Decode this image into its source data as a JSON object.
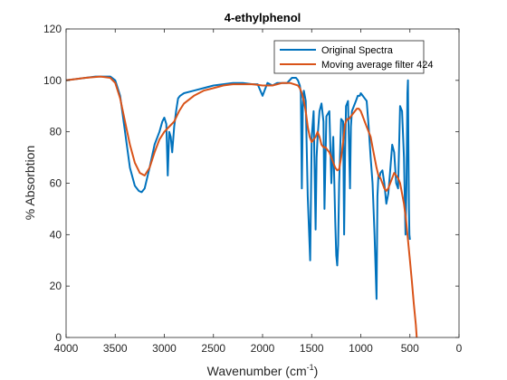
{
  "chart_data": {
    "type": "line",
    "title": "4-ethylphenol",
    "xlabel": "Wavenumber (cm",
    "xlabel_sup": "-1",
    "xlabel_end": ")",
    "ylabel": "% Absorbtion",
    "xlim": [
      4000,
      0
    ],
    "ylim": [
      0,
      120
    ],
    "x_reversed": true,
    "xticks": [
      4000,
      3500,
      3000,
      2500,
      2000,
      1500,
      1000,
      500,
      0
    ],
    "yticks": [
      0,
      20,
      40,
      60,
      80,
      100,
      120
    ],
    "legend_position": "top-right",
    "grid": false,
    "series": [
      {
        "name": "Original Spectra",
        "color": "#0072bd",
        "x": [
          4000,
          3800,
          3700,
          3600,
          3550,
          3500,
          3450,
          3400,
          3350,
          3300,
          3260,
          3230,
          3200,
          3150,
          3100,
          3050,
          3020,
          3000,
          2980,
          2965,
          2950,
          2935,
          2920,
          2900,
          2880,
          2860,
          2840,
          2800,
          2700,
          2600,
          2500,
          2400,
          2300,
          2200,
          2100,
          2050,
          2000,
          1950,
          1900,
          1850,
          1800,
          1750,
          1700,
          1660,
          1640,
          1620,
          1610,
          1600,
          1590,
          1580,
          1560,
          1540,
          1515,
          1500,
          1480,
          1460,
          1450,
          1440,
          1420,
          1400,
          1380,
          1370,
          1350,
          1320,
          1300,
          1280,
          1260,
          1250,
          1240,
          1230,
          1220,
          1200,
          1180,
          1170,
          1160,
          1150,
          1130,
          1110,
          1100,
          1090,
          1070,
          1050,
          1030,
          1010,
          1000,
          980,
          960,
          940,
          920,
          900,
          880,
          860,
          840,
          830,
          820,
          810,
          800,
          780,
          760,
          740,
          720,
          700,
          680,
          660,
          640,
          620,
          600,
          580,
          560,
          545,
          535,
          525,
          520,
          515,
          510,
          505,
          500
        ],
        "y": [
          100,
          101,
          101.5,
          101.5,
          101.5,
          100,
          94,
          80,
          66,
          59,
          57,
          56.5,
          58,
          66,
          75,
          80,
          84,
          85.5,
          83,
          63,
          80,
          78,
          72,
          82,
          88,
          93,
          94,
          95,
          96,
          97,
          98,
          98.5,
          99,
          99,
          98.5,
          98.5,
          94,
          99,
          98,
          99,
          99,
          99,
          101,
          101,
          100,
          98,
          95,
          58,
          90,
          96,
          92,
          55,
          30,
          78,
          88,
          42,
          70,
          78,
          88,
          91,
          84,
          50,
          86,
          88,
          60,
          78,
          45,
          32,
          28,
          36,
          60,
          85,
          84,
          40,
          70,
          90,
          92,
          58,
          82,
          88,
          90,
          92,
          94,
          94,
          95,
          94,
          93,
          92,
          82,
          70,
          60,
          40,
          15,
          55,
          63,
          62,
          64,
          65,
          60,
          52,
          56,
          65,
          75,
          72,
          60,
          58,
          90,
          88,
          70,
          40,
          60,
          95,
          100,
          75,
          50,
          40,
          38
        ]
      },
      {
        "name": "Moving average filter 424",
        "color": "#d95319",
        "x": [
          4000,
          3800,
          3650,
          3550,
          3500,
          3450,
          3400,
          3350,
          3300,
          3250,
          3200,
          3150,
          3100,
          3050,
          3000,
          2950,
          2900,
          2850,
          2800,
          2700,
          2600,
          2500,
          2400,
          2300,
          2200,
          2100,
          2000,
          1900,
          1800,
          1720,
          1680,
          1640,
          1620,
          1600,
          1580,
          1560,
          1540,
          1520,
          1500,
          1480,
          1460,
          1440,
          1420,
          1400,
          1380,
          1360,
          1340,
          1320,
          1300,
          1280,
          1260,
          1240,
          1220,
          1200,
          1180,
          1160,
          1140,
          1120,
          1100,
          1080,
          1060,
          1040,
          1020,
          1000,
          980,
          960,
          940,
          920,
          900,
          880,
          860,
          840,
          820,
          800,
          780,
          760,
          740,
          720,
          700,
          680,
          660,
          640,
          620,
          600,
          580,
          560,
          540,
          520,
          500,
          480,
          460,
          440,
          430
        ],
        "y": [
          100,
          101,
          101.5,
          101,
          99,
          93,
          84,
          75,
          68,
          64,
          63,
          66,
          72,
          77,
          80,
          82,
          84,
          88,
          91,
          94,
          96,
          97,
          98,
          98.5,
          98.5,
          98.5,
          98,
          98,
          99,
          99,
          98.5,
          98,
          97,
          95,
          92,
          88,
          82,
          78,
          76,
          77,
          78,
          80,
          78,
          75,
          74,
          74,
          73,
          72,
          70,
          68,
          66,
          65,
          65.5,
          70,
          76,
          83,
          85,
          85,
          86,
          87,
          88,
          89,
          89,
          88,
          86,
          84,
          82,
          80,
          78,
          74,
          70,
          66,
          63,
          62,
          60,
          58,
          57,
          58,
          60,
          62,
          64,
          63,
          62,
          60,
          56,
          52,
          46,
          38,
          30,
          22,
          13,
          5,
          0
        ]
      }
    ]
  }
}
